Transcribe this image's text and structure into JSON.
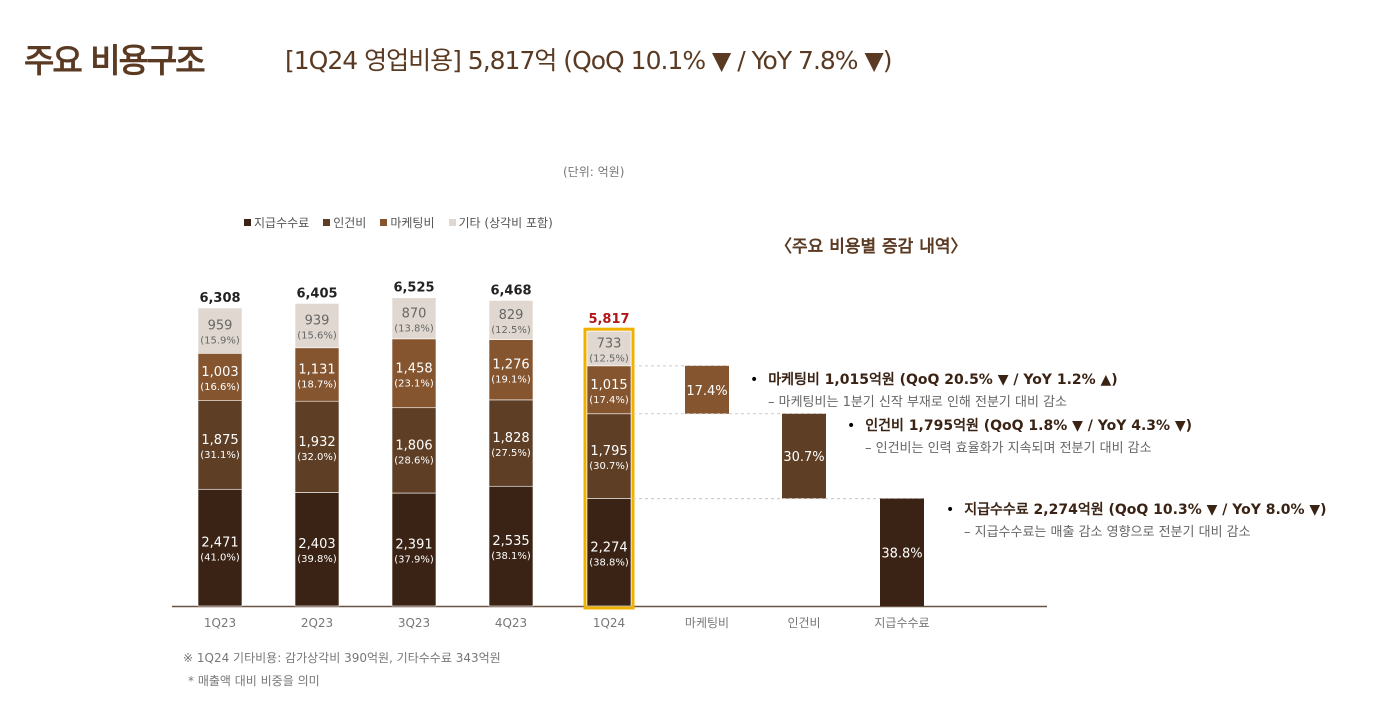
{
  "header": {
    "title": "주요 비용구조",
    "subtitle": "[1Q24 영업비용] 5,817억 (QoQ 10.1% ▼  / YoY 7.8% ▼)"
  },
  "unit": "(단위: 억원)",
  "section_title": "〈주요 비용별 증감 내역〉",
  "colors": {
    "fees": "#3a2314",
    "labor": "#5e3f26",
    "marketing": "#85552f",
    "other": "#e0d8d0",
    "highlight": "#f0b000",
    "total_highlight": "#b01818",
    "title": "#5a3a22"
  },
  "chart_data": {
    "type": "bar",
    "stacked": true,
    "categories": [
      "1Q23",
      "2Q23",
      "3Q23",
      "4Q23",
      "1Q24"
    ],
    "totals": [
      "6,308",
      "6,405",
      "6,525",
      "6,468",
      "5,817"
    ],
    "total_values": [
      6308,
      6405,
      6525,
      6468,
      5817
    ],
    "highlight_category": "1Q24",
    "legend": [
      "지급수수료",
      "인건비",
      "마케팅비",
      "기타 (상각비 포함)"
    ],
    "legend_position": "top",
    "series": [
      {
        "name": "지급수수료",
        "key": "fees",
        "values": [
          2471,
          2403,
          2391,
          2535,
          2274
        ],
        "labels": [
          "2,471",
          "2,403",
          "2,391",
          "2,535",
          "2,274"
        ],
        "pct": [
          "(41.0%)",
          "(39.8%)",
          "(37.9%)",
          "(38.1%)",
          "(38.8%)"
        ]
      },
      {
        "name": "인건비",
        "key": "labor",
        "values": [
          1875,
          1932,
          1806,
          1828,
          1795
        ],
        "labels": [
          "1,875",
          "1,932",
          "1,806",
          "1,828",
          "1,795"
        ],
        "pct": [
          "(31.1%)",
          "(32.0%)",
          "(28.6%)",
          "(27.5%)",
          "(30.7%)"
        ]
      },
      {
        "name": "마케팅비",
        "key": "marketing",
        "values": [
          1003,
          1131,
          1458,
          1276,
          1015
        ],
        "labels": [
          "1,003",
          "1,131",
          "1,458",
          "1,276",
          "1,015"
        ],
        "pct": [
          "(16.6%)",
          "(18.7%)",
          "(23.1%)",
          "(19.1%)",
          "(17.4%)"
        ]
      },
      {
        "name": "기타 (상각비 포함)",
        "key": "other",
        "values": [
          959,
          939,
          870,
          829,
          733
        ],
        "labels": [
          "959",
          "939",
          "870",
          "829",
          "733"
        ],
        "pct": [
          "(15.9%)",
          "(15.6%)",
          "(13.8%)",
          "(12.5%)",
          "(12.5%)"
        ]
      }
    ],
    "breakdown": [
      {
        "category": "마케팅비",
        "key": "marketing",
        "label": "17.4%"
      },
      {
        "category": "인건비",
        "key": "labor",
        "label": "30.7%"
      },
      {
        "category": "지급수수료",
        "key": "fees",
        "label": "38.8%"
      }
    ],
    "grid": false
  },
  "annotations": [
    {
      "bullet": "•",
      "head": "마케팅비 1,015억원 (QoQ 20.5% ▼ / YoY 1.2% ▲)",
      "desc": "– 마케팅비는 1분기 신작 부재로 인해 전분기 대비 감소"
    },
    {
      "bullet": "•",
      "head": "인건비 1,795억원 (QoQ 1.8% ▼ / YoY 4.3% ▼)",
      "desc": "– 인건비는 인력 효율화가 지속되며 전분기 대비 감소"
    },
    {
      "bullet": "•",
      "head": "지급수수료 2,274억원 (QoQ 10.3% ▼ / YoY 8.0% ▼)",
      "desc": "– 지급수수료는 매출 감소 영향으로 전분기 대비 감소"
    }
  ],
  "notes": [
    "※ 1Q24 기타비용: 감가상각비 390억원, 기타수수료 343억원",
    "* 매출액 대비 비중을 의미"
  ]
}
